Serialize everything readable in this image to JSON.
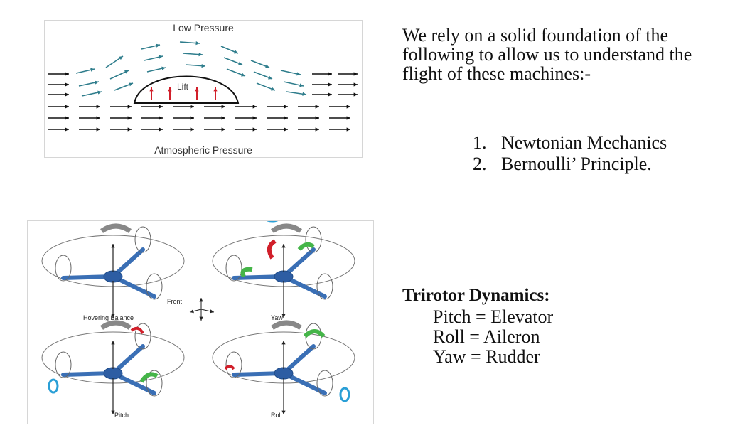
{
  "lift_diagram": {
    "top_label": "Low Pressure",
    "bottom_label": "Atmospheric Pressure",
    "lift_label": "Lift",
    "colors": {
      "upper_flow": "#2f7d8c",
      "lower_flow": "#111111",
      "lift_arrows": "#d11f2a"
    }
  },
  "intro": {
    "text": "We rely on a solid foundation of the following to allow us to understand the flight of these machines:-"
  },
  "principles": [
    {
      "num": "1.",
      "label": "Newtonian Mechanics"
    },
    {
      "num": "2.",
      "label": "Bernoulli’ Principle."
    }
  ],
  "trirotor_figure": {
    "captions": {
      "hovering": "Hovering Balance",
      "yaw": "Yaw",
      "pitch": "Pitch",
      "roll": "Roll",
      "front": "Front"
    },
    "colors": {
      "arm": "#3a6fb5",
      "hub": "#2d5da3",
      "red": "#d11f2a",
      "green": "#45b549",
      "cyan": "#2a9fd6"
    }
  },
  "dynamics": {
    "title": "Trirotor Dynamics:",
    "lines": [
      "Pitch = Elevator",
      "Roll = Aileron",
      "Yaw = Rudder"
    ]
  }
}
